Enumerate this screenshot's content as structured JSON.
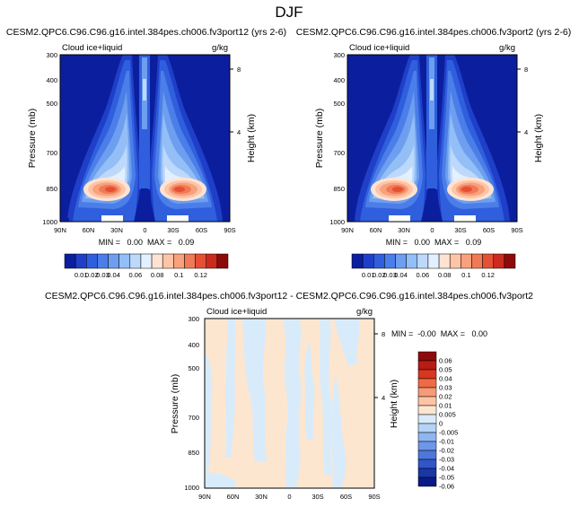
{
  "figure": {
    "title": "DJF"
  },
  "colors": {
    "plot_bg": "#0b1f9e",
    "diff_cream": "#fde6cf",
    "diff_blue": "#d8ebfb",
    "palette_main": [
      "#0b1f9e",
      "#1f3fc8",
      "#2f5fdd",
      "#4b7ee8",
      "#6d9ef0",
      "#93bef6",
      "#bcd9fb",
      "#e3f0ff",
      "#ffe3d2",
      "#fdc4a6",
      "#f9a07c",
      "#f07a55",
      "#e55035",
      "#cc2a1e",
      "#8e0a0a"
    ],
    "palette_diff": [
      "#8e0a0a",
      "#b81c14",
      "#d8361f",
      "#ee6b47",
      "#f69a77",
      "#fcc3a6",
      "#fde6cf",
      "#d8ebfb",
      "#b5d3f7",
      "#8fb6f0",
      "#6d97e8",
      "#4d77dc",
      "#3056c8",
      "#1b36a8",
      "#0a1a86"
    ]
  },
  "chart_data": [
    {
      "type": "heatmap",
      "title": "CESM2.QPC6.C96.C96.g16.intel.384pes.ch006.fv3port12 (yrs 2-6)",
      "left_label": "Cloud ice+liquid",
      "right_label": "g/kg",
      "ylabel": "Pressure (mb)",
      "y2label": "Height (km)",
      "x_ticks": [
        "90N",
        "60N",
        "30N",
        "0",
        "30S",
        "60S",
        "90S"
      ],
      "y_ticks": [
        "300",
        "400",
        "500",
        "700",
        "850",
        "1000"
      ],
      "y2_ticks": [
        "8",
        "4"
      ],
      "stats": "MIN =   0.00  MAX =   0.09",
      "colorbar_labels": [
        "0.01",
        "0.02",
        "0.03",
        "0.04",
        "0.06",
        "0.08",
        "0.1",
        "0.12"
      ]
    },
    {
      "type": "heatmap",
      "title": "CESM2.QPC6.C96.C96.g16.intel.384pes.ch006.fv3port2 (yrs 2-6)",
      "left_label": "Cloud ice+liquid",
      "right_label": "g/kg",
      "ylabel": "Pressure (mb)",
      "y2label": "Height (km)",
      "x_ticks": [
        "90N",
        "60N",
        "30N",
        "0",
        "30S",
        "60S",
        "90S"
      ],
      "y_ticks": [
        "300",
        "400",
        "500",
        "700",
        "850",
        "1000"
      ],
      "y2_ticks": [
        "8",
        "4"
      ],
      "stats": "MIN =   0.00  MAX =   0.09",
      "colorbar_labels": [
        "0.01",
        "0.02",
        "0.03",
        "0.04",
        "0.06",
        "0.08",
        "0.1",
        "0.12"
      ]
    },
    {
      "type": "heatmap",
      "title": "CESM2.QPC6.C96.C96.g16.intel.384pes.ch006.fv3port12 - CESM2.QPC6.C96.C96.g16.intel.384pes.ch006.fv3port2",
      "left_label": "Cloud ice+liquid",
      "right_label": "g/kg",
      "ylabel": "Pressure (mb)",
      "y2label": "Height (km)",
      "x_ticks": [
        "90N",
        "60N",
        "30N",
        "0",
        "30S",
        "60S",
        "90S"
      ],
      "y_ticks": [
        "300",
        "400",
        "500",
        "700",
        "850",
        "1000"
      ],
      "y2_ticks": [
        "8",
        "4"
      ],
      "stats": "MIN =  -0.00  MAX =   0.00",
      "colorbar_labels": [
        "0.06",
        "0.05",
        "0.04",
        "0.03",
        "0.02",
        "0.01",
        "0.005",
        "0",
        "-0.005",
        "-0.01",
        "-0.02",
        "-0.03",
        "-0.04",
        "-0.05",
        "-0.06"
      ]
    }
  ]
}
